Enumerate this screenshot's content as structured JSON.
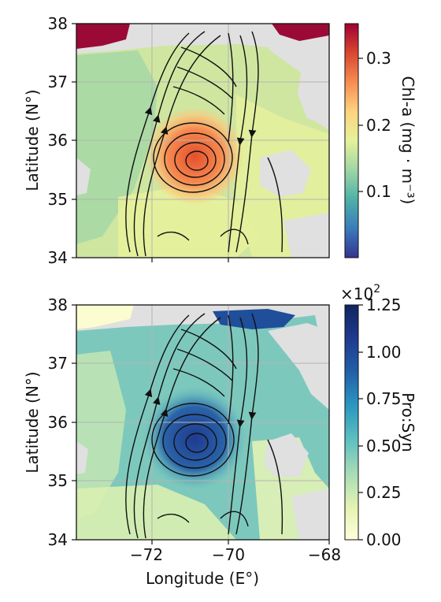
{
  "panels": [
    {
      "id": "chl",
      "ylabel": "Latitude (N°)",
      "y_ticks": [
        "38",
        "37",
        "36",
        "35",
        "34"
      ],
      "cbar_label": "Chl-a (mg · m⁻³)",
      "cbar_ticks": [
        "0.3",
        "0.2",
        "0.1"
      ],
      "cbar_colors": [
        "#33338f",
        "#3a7cbb",
        "#4fb1a6",
        "#9fd6a4",
        "#e5f29a",
        "#fdd37f",
        "#f68d52",
        "#d8472f",
        "#a00033"
      ]
    },
    {
      "id": "prosyn",
      "ylabel": "Latitude (N°)",
      "y_ticks": [
        "38",
        "37",
        "36",
        "35",
        "34"
      ],
      "cbar_label": "Pro:Syn",
      "cbar_scale": "×10",
      "cbar_scale_exp": "2",
      "cbar_ticks": [
        "1.25",
        "1.00",
        "0.75",
        "0.50",
        "0.25",
        "0.00"
      ],
      "cbar_colors": [
        "#ffffd9",
        "#e2f3b2",
        "#a6dbb7",
        "#5cbfc0",
        "#2b97c0",
        "#2260a8",
        "#1f3a8f",
        "#0f2460"
      ]
    }
  ],
  "x_ticks": [
    "−72",
    "−70",
    "−68"
  ],
  "xlabel": "Longitude (E°)",
  "colors": {
    "land": "#e0e0e0",
    "grid": "#b4b4b4",
    "streamline": "#111111"
  }
}
